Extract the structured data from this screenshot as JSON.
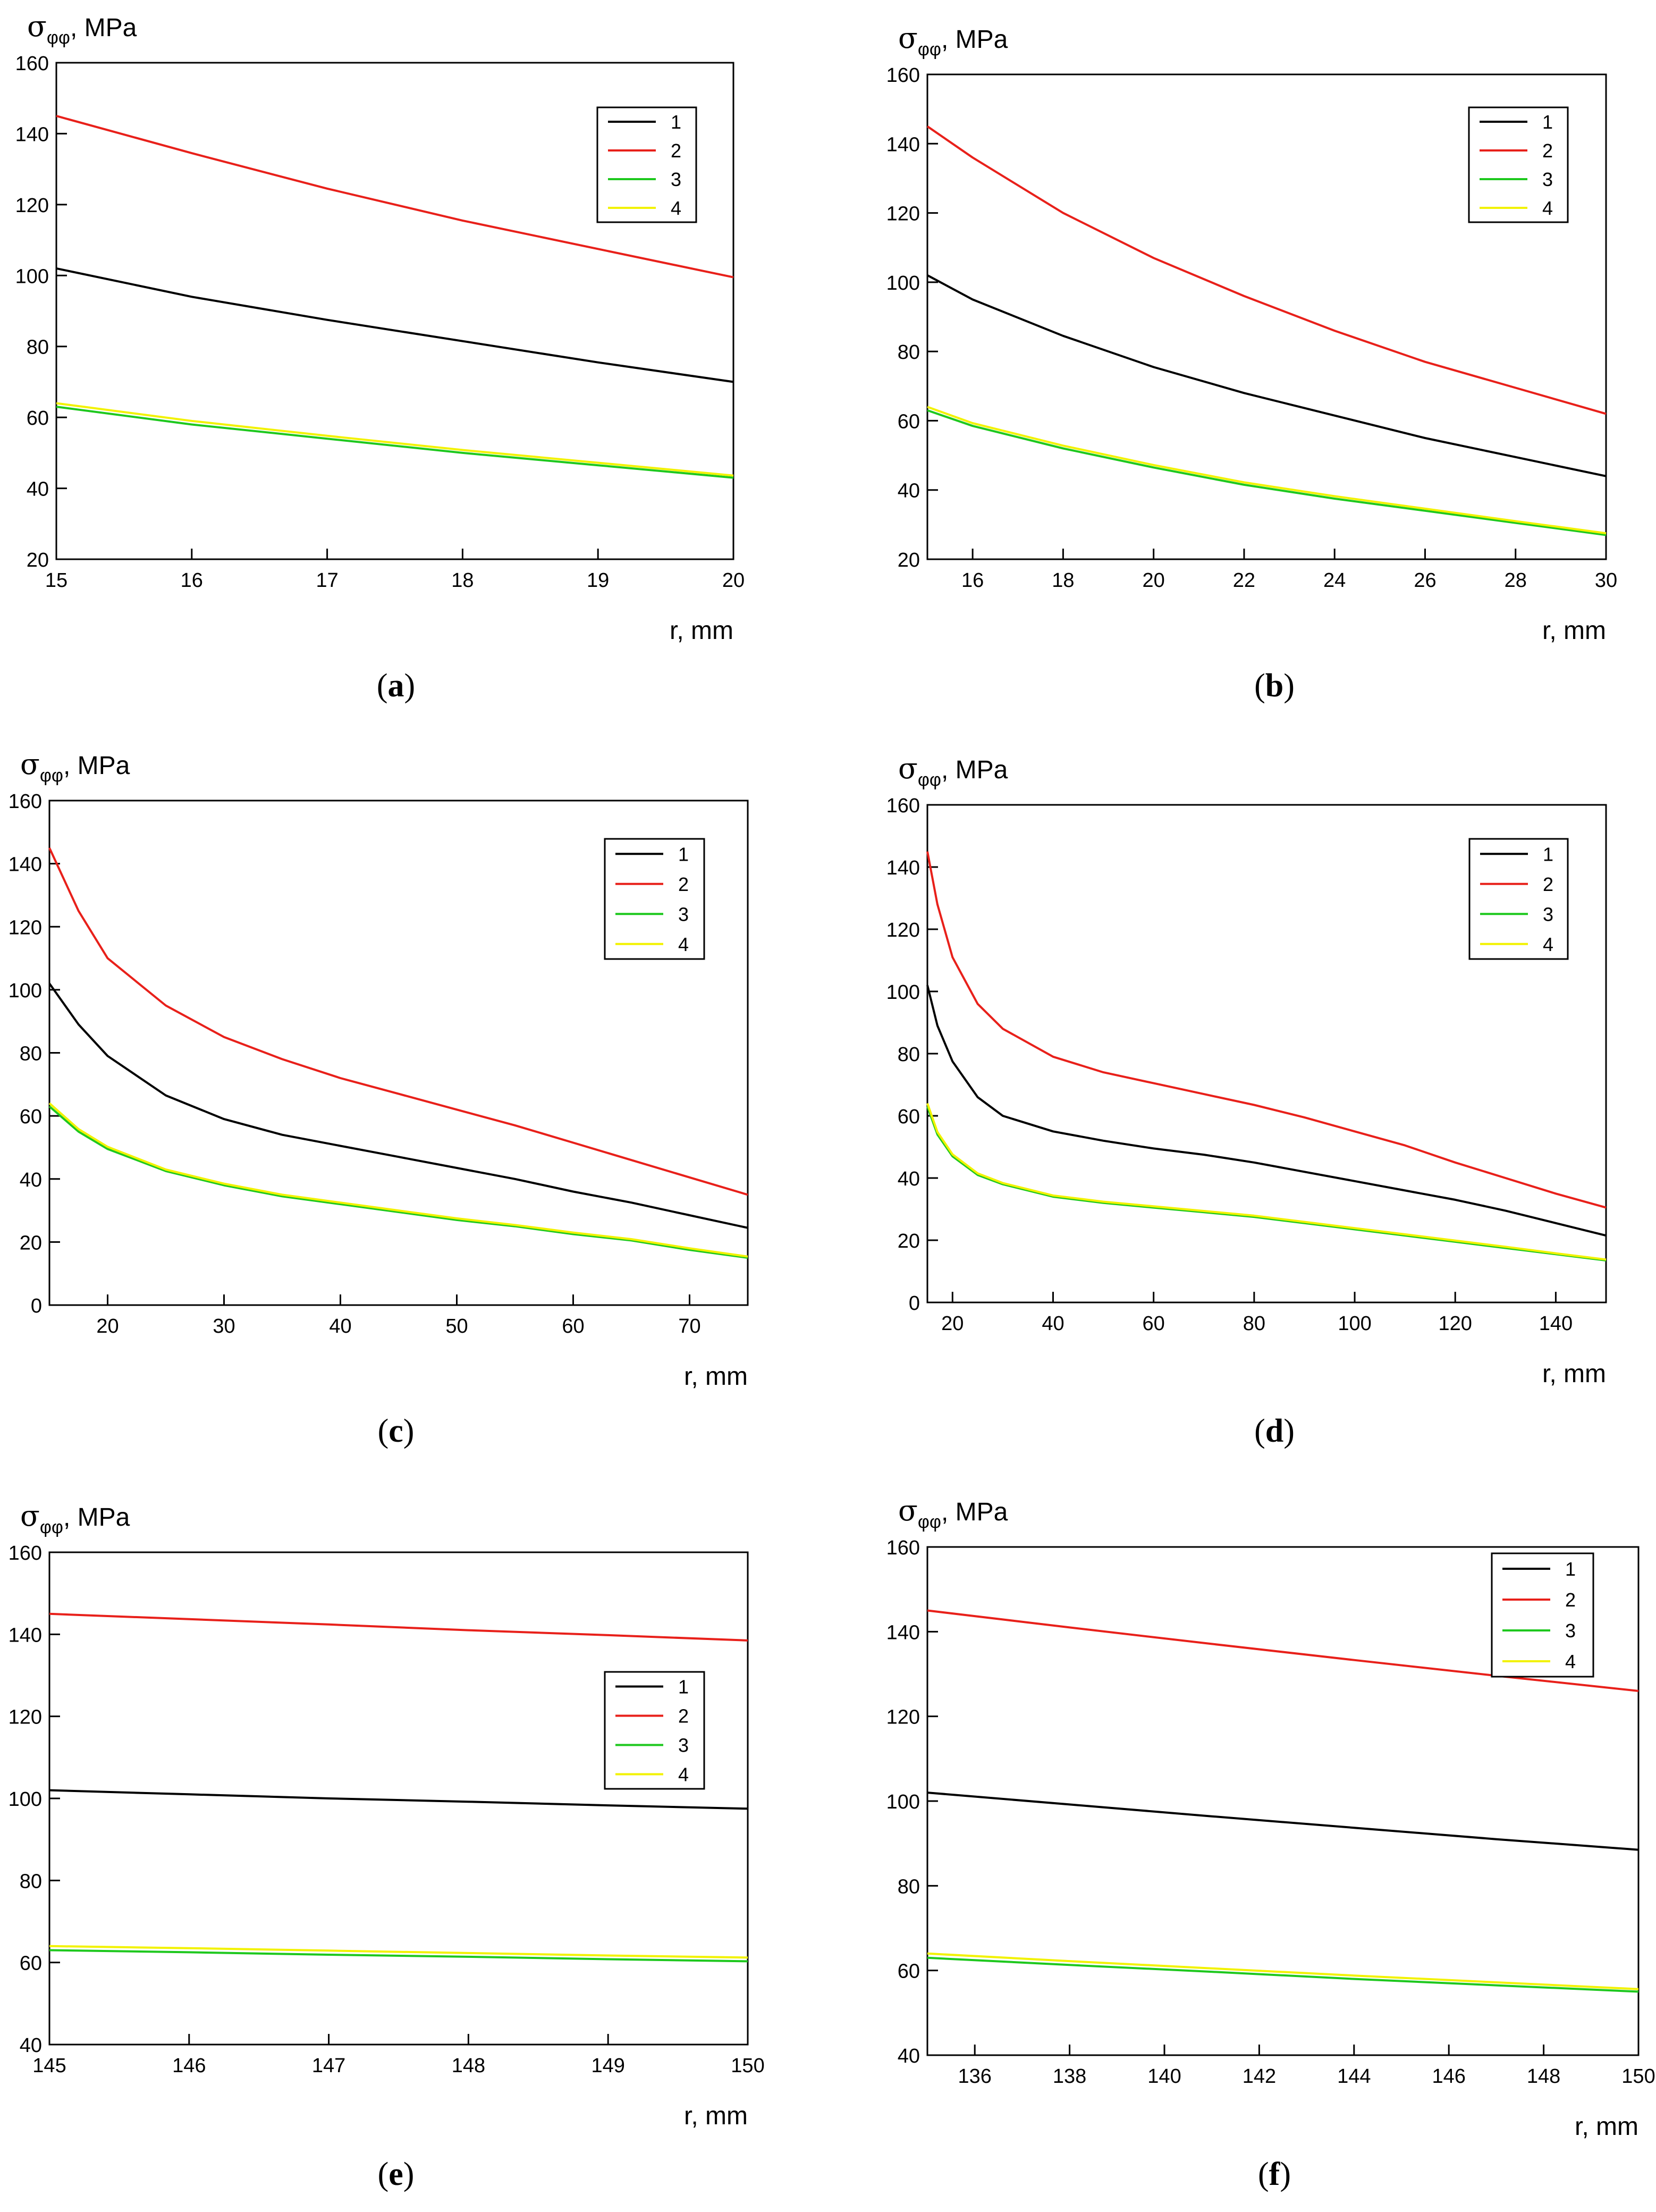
{
  "figure": {
    "ylabel_symbol": "σ",
    "ylabel_subscript": "φφ",
    "ylabel_unit": ", MPa",
    "xlabel": "r, mm"
  },
  "chart_data": [
    {
      "type": "line",
      "panel": "a",
      "caption": "a",
      "xlabel": "r, mm",
      "ylabel": "σφφ, MPa",
      "xlim": [
        15,
        20
      ],
      "ylim": [
        20,
        160
      ],
      "xticks": [
        15,
        16,
        17,
        18,
        19,
        20
      ],
      "yticks": [
        20,
        40,
        60,
        80,
        100,
        120,
        140,
        160
      ],
      "legend_position": "top-right",
      "grid": false,
      "series": [
        {
          "name": "1",
          "color": "#000000",
          "x": [
            15,
            16,
            17,
            18,
            19,
            20
          ],
          "y": [
            102,
            94,
            87.5,
            81.5,
            75.5,
            70
          ]
        },
        {
          "name": "2",
          "color": "#e8201a",
          "x": [
            15,
            16,
            17,
            18,
            19,
            20
          ],
          "y": [
            145,
            134.5,
            124.5,
            115.5,
            107.5,
            99.5
          ]
        },
        {
          "name": "3",
          "color": "#1ec81e",
          "x": [
            15,
            16,
            17,
            18,
            19,
            20
          ],
          "y": [
            63,
            58,
            54,
            50,
            46.5,
            43
          ]
        },
        {
          "name": "4",
          "color": "#f2f200",
          "x": [
            15,
            16,
            17,
            18,
            19,
            20
          ],
          "y": [
            64,
            59,
            54.8,
            50.8,
            47.2,
            43.6
          ]
        }
      ]
    },
    {
      "type": "line",
      "panel": "b",
      "caption": "b",
      "xlabel": "r, mm",
      "ylabel": "σφφ, MPa",
      "xlim": [
        15,
        30
      ],
      "ylim": [
        20,
        160
      ],
      "xticks": [
        16,
        18,
        20,
        22,
        24,
        26,
        28,
        30
      ],
      "yticks": [
        20,
        40,
        60,
        80,
        100,
        120,
        140,
        160
      ],
      "legend_position": "top-right",
      "grid": false,
      "series": [
        {
          "name": "1",
          "color": "#000000",
          "x": [
            15,
            16,
            18,
            20,
            22,
            24,
            26,
            28,
            30
          ],
          "y": [
            102,
            95,
            84.5,
            75.5,
            68,
            61.5,
            55,
            49.5,
            44
          ]
        },
        {
          "name": "2",
          "color": "#e8201a",
          "x": [
            15,
            16,
            18,
            20,
            22,
            24,
            26,
            28,
            30
          ],
          "y": [
            145,
            136,
            120,
            107,
            96,
            86,
            77,
            69.5,
            62
          ]
        },
        {
          "name": "3",
          "color": "#1ec81e",
          "x": [
            15,
            16,
            18,
            20,
            22,
            24,
            26,
            28,
            30
          ],
          "y": [
            63,
            58.5,
            52,
            46.5,
            41.5,
            37.5,
            34,
            30.5,
            27
          ]
        },
        {
          "name": "4",
          "color": "#f2f200",
          "x": [
            15,
            16,
            18,
            20,
            22,
            24,
            26,
            28,
            30
          ],
          "y": [
            64,
            59.3,
            52.8,
            47.2,
            42.2,
            38.2,
            34.6,
            31,
            27.5
          ]
        }
      ]
    },
    {
      "type": "line",
      "panel": "c",
      "caption": "c",
      "xlabel": "r, mm",
      "ylabel": "σφφ, MPa",
      "xlim": [
        15,
        75
      ],
      "ylim": [
        0,
        160
      ],
      "xticks": [
        20,
        30,
        40,
        50,
        60,
        70
      ],
      "yticks": [
        0,
        20,
        40,
        60,
        80,
        100,
        120,
        140,
        160
      ],
      "legend_position": "top-right",
      "grid": false,
      "series": [
        {
          "name": "1",
          "color": "#000000",
          "x": [
            15,
            17.5,
            20,
            25,
            30,
            35,
            40,
            45,
            50,
            55,
            60,
            65,
            70,
            75
          ],
          "y": [
            102,
            89,
            79,
            66.5,
            59,
            54,
            50.5,
            47,
            43.5,
            40,
            36,
            32.5,
            28.5,
            24.5
          ]
        },
        {
          "name": "2",
          "color": "#e8201a",
          "x": [
            15,
            17.5,
            20,
            25,
            30,
            35,
            40,
            45,
            50,
            55,
            60,
            65,
            70,
            75
          ],
          "y": [
            145,
            125,
            110,
            95,
            85,
            78,
            72,
            67,
            62,
            57,
            51.5,
            46,
            40.5,
            35
          ]
        },
        {
          "name": "3",
          "color": "#1ec81e",
          "x": [
            15,
            17.5,
            20,
            25,
            30,
            35,
            40,
            45,
            50,
            55,
            60,
            65,
            70,
            75
          ],
          "y": [
            63,
            55,
            49.5,
            42.5,
            38,
            34.5,
            32,
            29.5,
            27,
            25,
            22.5,
            20.5,
            17.5,
            15
          ]
        },
        {
          "name": "4",
          "color": "#f2f200",
          "x": [
            15,
            17.5,
            20,
            25,
            30,
            35,
            40,
            45,
            50,
            55,
            60,
            65,
            70,
            75
          ],
          "y": [
            64,
            55.8,
            50.2,
            43,
            38.5,
            35,
            32.5,
            30,
            27.5,
            25.4,
            23,
            20.9,
            18,
            15.4
          ]
        }
      ]
    },
    {
      "type": "line",
      "panel": "d",
      "caption": "d",
      "xlabel": "r, mm",
      "ylabel": "σφφ, MPa",
      "xlim": [
        15,
        150
      ],
      "ylim": [
        0,
        160
      ],
      "xticks": [
        20,
        40,
        60,
        80,
        100,
        120,
        140
      ],
      "yticks": [
        0,
        20,
        40,
        60,
        80,
        100,
        120,
        140,
        160
      ],
      "legend_position": "top-right",
      "grid": false,
      "series": [
        {
          "name": "1",
          "color": "#000000",
          "x": [
            15,
            17,
            20,
            25,
            30,
            40,
            50,
            60,
            70,
            80,
            90,
            100,
            110,
            120,
            130,
            140,
            150
          ],
          "y": [
            102,
            89,
            77.5,
            66,
            60,
            55,
            52,
            49.5,
            47.5,
            45,
            42,
            39,
            36,
            33,
            29.5,
            25.5,
            21.5
          ]
        },
        {
          "name": "2",
          "color": "#e8201a",
          "x": [
            15,
            17,
            20,
            25,
            30,
            40,
            50,
            60,
            70,
            80,
            90,
            100,
            110,
            120,
            130,
            140,
            150
          ],
          "y": [
            145,
            128,
            111,
            96,
            88,
            79,
            74,
            70.5,
            67,
            63.5,
            59.5,
            55,
            50.5,
            45,
            40,
            35,
            30.5
          ]
        },
        {
          "name": "3",
          "color": "#1ec81e",
          "x": [
            15,
            17,
            20,
            25,
            30,
            40,
            50,
            60,
            70,
            80,
            90,
            100,
            110,
            120,
            130,
            140,
            150
          ],
          "y": [
            63,
            54,
            47,
            41,
            38,
            34,
            32,
            30.5,
            29,
            27.5,
            25.5,
            23.5,
            21.5,
            19.5,
            17.5,
            15.5,
            13.5
          ]
        },
        {
          "name": "4",
          "color": "#f2f200",
          "x": [
            15,
            17,
            20,
            25,
            30,
            40,
            50,
            60,
            70,
            80,
            90,
            100,
            110,
            120,
            130,
            140,
            150
          ],
          "y": [
            64,
            54.8,
            47.6,
            41.5,
            38.4,
            34.4,
            32.4,
            30.9,
            29.4,
            27.9,
            25.9,
            23.9,
            21.9,
            19.9,
            17.9,
            15.8,
            13.8
          ]
        }
      ]
    },
    {
      "type": "line",
      "panel": "e",
      "caption": "e",
      "xlabel": "r, mm",
      "ylabel": "σφφ, MPa",
      "xlim": [
        145,
        150
      ],
      "ylim": [
        40,
        160
      ],
      "xticks": [
        145,
        146,
        147,
        148,
        149,
        150
      ],
      "yticks": [
        40,
        60,
        80,
        100,
        120,
        140,
        160
      ],
      "legend_position": "right",
      "grid": false,
      "series": [
        {
          "name": "1",
          "color": "#000000",
          "x": [
            145,
            146,
            147,
            148,
            149,
            150
          ],
          "y": [
            102,
            101,
            100,
            99.2,
            98.3,
            97.5
          ]
        },
        {
          "name": "2",
          "color": "#e8201a",
          "x": [
            145,
            146,
            147,
            148,
            149,
            150
          ],
          "y": [
            145,
            143.7,
            142.4,
            141,
            139.8,
            138.5
          ]
        },
        {
          "name": "3",
          "color": "#1ec81e",
          "x": [
            145,
            146,
            147,
            148,
            149,
            150
          ],
          "y": [
            63,
            62.5,
            61.9,
            61.4,
            60.8,
            60.3
          ]
        },
        {
          "name": "4",
          "color": "#f2f200",
          "x": [
            145,
            146,
            147,
            148,
            149,
            150
          ],
          "y": [
            64,
            63.5,
            62.9,
            62.3,
            61.7,
            61.2
          ]
        }
      ]
    },
    {
      "type": "line",
      "panel": "f",
      "caption": "f",
      "xlabel": "r, mm",
      "ylabel": "σφφ, MPa",
      "xlim": [
        135,
        150
      ],
      "ylim": [
        40,
        160
      ],
      "xticks": [
        136,
        138,
        140,
        142,
        144,
        146,
        148,
        150
      ],
      "yticks": [
        40,
        60,
        80,
        100,
        120,
        140,
        160
      ],
      "legend_position": "top-right",
      "grid": false,
      "series": [
        {
          "name": "1",
          "color": "#000000",
          "x": [
            135,
            138,
            141,
            144,
            147,
            150
          ],
          "y": [
            102,
            99.2,
            96.4,
            93.7,
            91,
            88.5
          ]
        },
        {
          "name": "2",
          "color": "#e8201a",
          "x": [
            135,
            138,
            141,
            144,
            147,
            150
          ],
          "y": [
            145,
            141,
            137.1,
            133.3,
            129.6,
            126
          ]
        },
        {
          "name": "3",
          "color": "#1ec81e",
          "x": [
            135,
            138,
            141,
            144,
            147,
            150
          ],
          "y": [
            63,
            61.3,
            59.7,
            58,
            56.5,
            55
          ]
        },
        {
          "name": "4",
          "color": "#f2f200",
          "x": [
            135,
            138,
            141,
            144,
            147,
            150
          ],
          "y": [
            64,
            62.2,
            60.5,
            58.8,
            57.2,
            55.6
          ]
        }
      ]
    }
  ]
}
